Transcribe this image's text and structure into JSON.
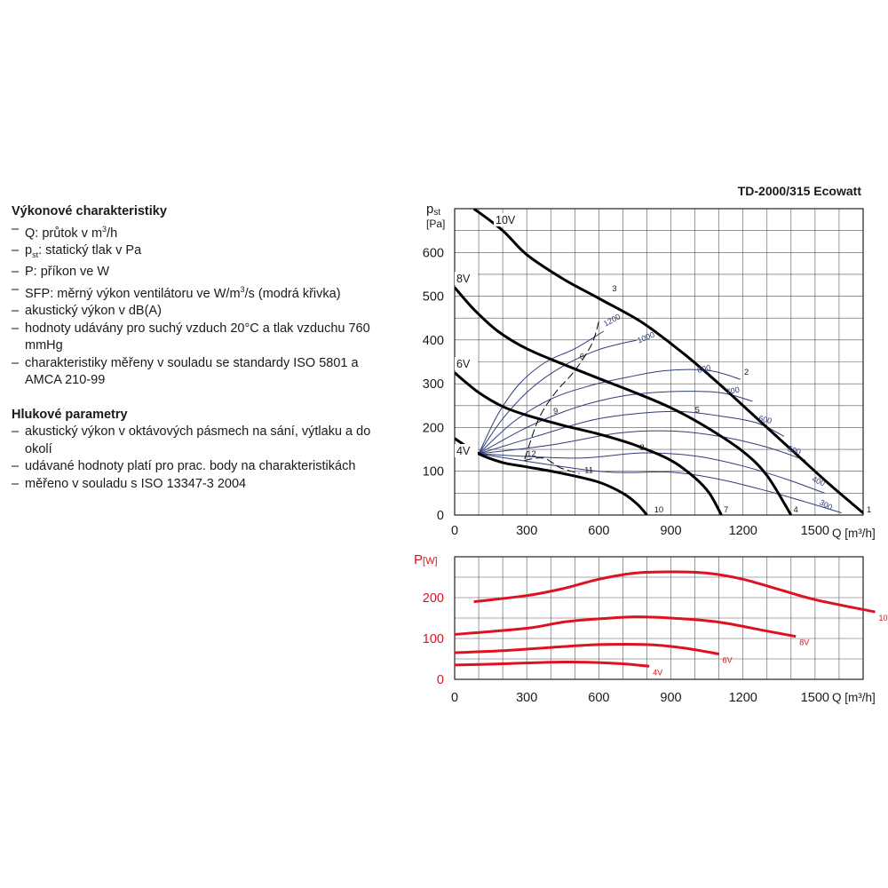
{
  "notes": {
    "performance_heading": "Výkonové charakteristiky",
    "performance_items": [
      {
        "before": "Q: průtok v m",
        "sup": "3",
        "after": "/h"
      },
      {
        "before": "p",
        "sub": "st",
        "after": ": statický tlak v Pa"
      },
      {
        "before": "P: příkon ve W"
      },
      {
        "before": "SFP: měrný výkon ventilátoru ve W/m",
        "sup": "3",
        "after": "/s (modrá křivka)"
      },
      {
        "before": "akustický výkon v dB(A)"
      },
      {
        "before": "hodnoty udávány pro suchý vzduch 20°C a tlak vzduchu 760 mmHg"
      },
      {
        "before": "charakteristiky měřeny v souladu se standardy ISO 5801 a AMCA 210-99"
      }
    ],
    "noise_heading": "Hlukové parametry",
    "noise_items": [
      {
        "before": "akustický výkon v oktávových pásmech na sání, výtlaku a do okolí"
      },
      {
        "before": "udávané hodnoty platí pro prac. body na charakteristikách"
      },
      {
        "before": "měřeno v souladu s ISO 13347-3 2004"
      }
    ]
  },
  "chart_data": [
    {
      "type": "line",
      "title": "TD-2000/315 Ecowatt",
      "ylabel_main": "p",
      "ylabel_sub": "st",
      "yunit": "[Pa]",
      "xlabel": "Q [m³/h]",
      "xlim": [
        0,
        1700
      ],
      "ylim": [
        0,
        700
      ],
      "xticks": [
        "0",
        "300",
        "600",
        "900",
        "1200",
        "1500"
      ],
      "yticks": [
        "0",
        "100",
        "200",
        "300",
        "400",
        "500",
        "600"
      ],
      "grid": true,
      "colors": {
        "fan_curve": "#000000",
        "sfp_curve": "#2e3d7a",
        "operating_line": "#000000"
      },
      "series": [
        {
          "name": "10V",
          "points": [
            [
              80,
              700
            ],
            [
              200,
              650
            ],
            [
              300,
              595
            ],
            [
              450,
              540
            ],
            [
              600,
              495
            ],
            [
              780,
              440
            ],
            [
              950,
              370
            ],
            [
              1100,
              300
            ],
            [
              1250,
              225
            ],
            [
              1400,
              150
            ],
            [
              1550,
              75
            ],
            [
              1710,
              0
            ]
          ]
        },
        {
          "name": "8V",
          "points": [
            [
              0,
              520
            ],
            [
              80,
              470
            ],
            [
              180,
              420
            ],
            [
              300,
              380
            ],
            [
              450,
              345
            ],
            [
              600,
              312
            ],
            [
              750,
              280
            ],
            [
              900,
              245
            ],
            [
              1050,
              200
            ],
            [
              1200,
              145
            ],
            [
              1300,
              90
            ],
            [
              1400,
              0
            ]
          ]
        },
        {
          "name": "6V",
          "points": [
            [
              0,
              325
            ],
            [
              100,
              280
            ],
            [
              200,
              248
            ],
            [
              300,
              228
            ],
            [
              450,
              205
            ],
            [
              600,
              185
            ],
            [
              750,
              160
            ],
            [
              900,
              125
            ],
            [
              1000,
              85
            ],
            [
              1060,
              50
            ],
            [
              1110,
              0
            ]
          ]
        },
        {
          "name": "4V",
          "points": [
            [
              0,
              175
            ],
            [
              100,
              140
            ],
            [
              200,
              120
            ],
            [
              300,
              110
            ],
            [
              450,
              95
            ],
            [
              600,
              75
            ],
            [
              700,
              50
            ],
            [
              760,
              25
            ],
            [
              800,
              0
            ]
          ]
        }
      ],
      "sfp_series": [
        {
          "name": "1200",
          "points": [
            [
              100,
              140
            ],
            [
              180,
              230
            ],
            [
              270,
              300
            ],
            [
              380,
              350
            ],
            [
              500,
              380
            ],
            [
              620,
              420
            ]
          ]
        },
        {
          "name": "1000",
          "points": [
            [
              100,
              140
            ],
            [
              200,
              220
            ],
            [
              320,
              290
            ],
            [
              450,
              340
            ],
            [
              600,
              378
            ],
            [
              760,
              400
            ]
          ]
        },
        {
          "name": "800",
          "points": [
            [
              100,
              140
            ],
            [
              250,
              215
            ],
            [
              400,
              265
            ],
            [
              560,
              295
            ],
            [
              720,
              315
            ],
            [
              880,
              330
            ],
            [
              1060,
              330
            ],
            [
              1190,
              310
            ]
          ]
        },
        {
          "name": "700",
          "points": [
            [
              100,
              140
            ],
            [
              300,
              200
            ],
            [
              500,
              245
            ],
            [
              700,
              272
            ],
            [
              900,
              282
            ],
            [
              1100,
              280
            ],
            [
              1240,
              260
            ]
          ]
        },
        {
          "name": "600",
          "points": [
            [
              100,
              140
            ],
            [
              340,
              180
            ],
            [
              580,
              218
            ],
            [
              800,
              234
            ],
            [
              960,
              236
            ],
            [
              1120,
              225
            ],
            [
              1260,
              210
            ],
            [
              1370,
              180
            ]
          ]
        },
        {
          "name": "500",
          "points": [
            [
              100,
              140
            ],
            [
              400,
              160
            ],
            [
              680,
              187
            ],
            [
              900,
              192
            ],
            [
              1100,
              180
            ],
            [
              1300,
              155
            ],
            [
              1460,
              125
            ]
          ]
        },
        {
          "name": "400",
          "points": [
            [
              100,
              140
            ],
            [
              500,
              130
            ],
            [
              780,
              142
            ],
            [
              1000,
              135
            ],
            [
              1200,
              112
            ],
            [
              1380,
              82
            ],
            [
              1540,
              50
            ]
          ]
        },
        {
          "name": "300",
          "points": [
            [
              100,
              140
            ],
            [
              600,
              100
            ],
            [
              900,
              98
            ],
            [
              1100,
              82
            ],
            [
              1300,
              55
            ],
            [
              1460,
              30
            ],
            [
              1610,
              5
            ]
          ]
        }
      ],
      "sfp_label_positions": [
        {
          "text": "1200",
          "x": 660,
          "y": 440
        },
        {
          "text": "1000",
          "x": 800,
          "y": 400
        },
        {
          "text": "800",
          "x": 1040,
          "y": 328
        },
        {
          "text": "700",
          "x": 1160,
          "y": 278
        },
        {
          "text": "600",
          "x": 1290,
          "y": 212
        },
        {
          "text": "500",
          "x": 1410,
          "y": 142
        },
        {
          "text": "400",
          "x": 1510,
          "y": 72
        },
        {
          "text": "300",
          "x": 1540,
          "y": 18
        }
      ],
      "operating_lines": [
        {
          "points": [
            [
              600,
              442
            ],
            [
              570,
              390
            ],
            [
              500,
              330
            ],
            [
              420,
              280
            ],
            [
              350,
              220
            ],
            [
              290,
              125
            ]
          ]
        },
        {
          "points": [
            [
              290,
              125
            ],
            [
              370,
              130
            ],
            [
              440,
              108
            ],
            [
              520,
              95
            ]
          ]
        }
      ],
      "points": [
        {
          "label": "1",
          "x": 1715,
          "y": 0
        },
        {
          "label": "2",
          "x": 1205,
          "y": 315
        },
        {
          "label": "3",
          "x": 655,
          "y": 505
        },
        {
          "label": "4",
          "x": 1410,
          "y": 0
        },
        {
          "label": "5",
          "x": 1000,
          "y": 228
        },
        {
          "label": "6",
          "x": 520,
          "y": 350
        },
        {
          "label": "7",
          "x": 1120,
          "y": 0
        },
        {
          "label": "8",
          "x": 770,
          "y": 142
        },
        {
          "label": "9",
          "x": 410,
          "y": 225
        },
        {
          "label": "10",
          "x": 830,
          "y": 0
        },
        {
          "label": "11",
          "x": 540,
          "y": 90
        },
        {
          "label": "12",
          "x": 300,
          "y": 128
        }
      ]
    },
    {
      "type": "line",
      "ylabel_main": "P",
      "yunit": "[W]",
      "xlabel": "Q [m³/h]",
      "xlim": [
        0,
        1700
      ],
      "ylim": [
        0,
        300
      ],
      "xticks": [
        "0",
        "300",
        "600",
        "900",
        "1200",
        "1500"
      ],
      "yticks": [
        "0",
        "100",
        "200"
      ],
      "grid": true,
      "colors": {
        "power_curve": "#e01020",
        "power_label": "#d01820"
      },
      "series": [
        {
          "name": "10V",
          "points": [
            [
              80,
              190
            ],
            [
              300,
              205
            ],
            [
              450,
              222
            ],
            [
              600,
              245
            ],
            [
              750,
              260
            ],
            [
              900,
              263
            ],
            [
              1050,
              260
            ],
            [
              1200,
              245
            ],
            [
              1350,
              220
            ],
            [
              1500,
              195
            ],
            [
              1750,
              165
            ]
          ]
        },
        {
          "name": "8V",
          "points": [
            [
              0,
              110
            ],
            [
              300,
              125
            ],
            [
              450,
              140
            ],
            [
              600,
              148
            ],
            [
              750,
              153
            ],
            [
              900,
              150
            ],
            [
              1100,
              140
            ],
            [
              1300,
              118
            ],
            [
              1420,
              105
            ]
          ]
        },
        {
          "name": "6V",
          "points": [
            [
              0,
              65
            ],
            [
              200,
              70
            ],
            [
              400,
              78
            ],
            [
              600,
              85
            ],
            [
              800,
              85
            ],
            [
              950,
              77
            ],
            [
              1100,
              62
            ]
          ]
        },
        {
          "name": "4V",
          "points": [
            [
              0,
              35
            ],
            [
              200,
              38
            ],
            [
              400,
              42
            ],
            [
              550,
              42
            ],
            [
              700,
              38
            ],
            [
              810,
              32
            ]
          ]
        }
      ]
    }
  ]
}
